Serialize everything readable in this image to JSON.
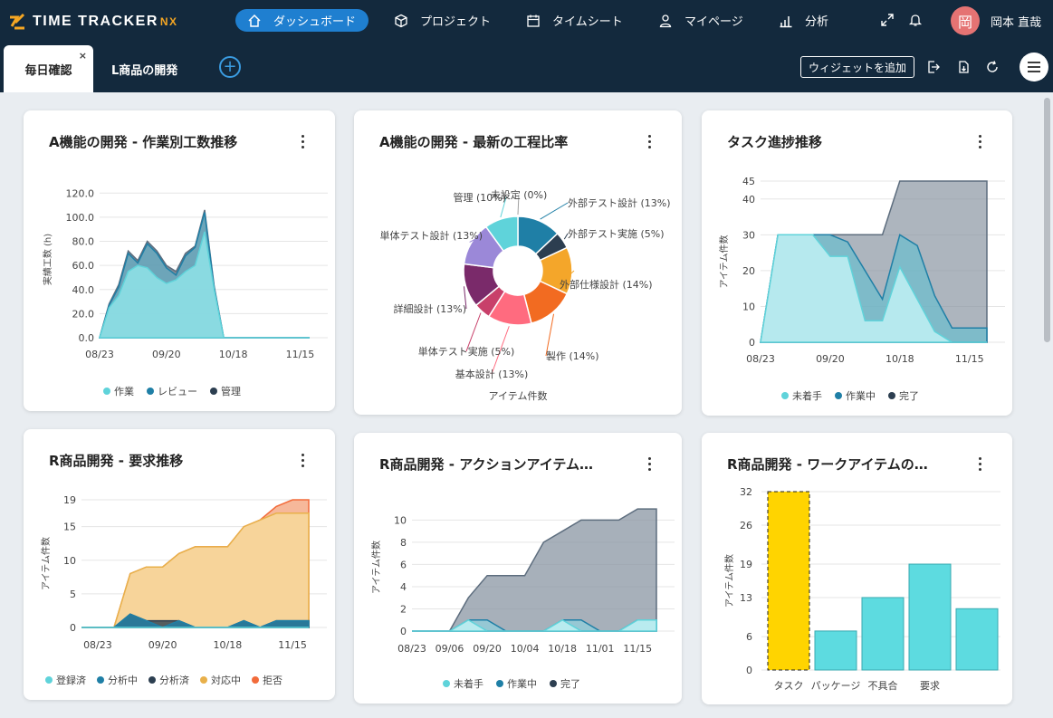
{
  "app": {
    "logo_text": "TIME TRACKER",
    "logo_suffix": "NX",
    "nav": [
      {
        "label": "ダッシュボード",
        "icon": "home-icon"
      },
      {
        "label": "プロジェクト",
        "icon": "cube-icon"
      },
      {
        "label": "タイムシート",
        "icon": "calendar-icon"
      },
      {
        "label": "マイページ",
        "icon": "user-icon"
      },
      {
        "label": "分析",
        "icon": "bar-chart-icon"
      }
    ],
    "user_initial": "岡",
    "user_name": "岡本 直哉"
  },
  "tabs": {
    "items": [
      {
        "label": "毎日確認"
      },
      {
        "label": "L商品の開発"
      }
    ],
    "close": "×",
    "add": "+",
    "add_widget_label": "ウィジェットを追加"
  },
  "colors": {
    "nav_bg": "#13293d",
    "active": "#1f7fd0",
    "cyan": "#5fd3da",
    "teal": "#1f7fa6",
    "navy": "#2c3e50",
    "gold": "#e8b04a",
    "orange": "#f26b3a"
  },
  "widgets": [
    {
      "title": "A機能の開発 - 作業別工数推移"
    },
    {
      "title": "A機能の開発 - 最新の工程比率"
    },
    {
      "title": "タスク進捗推移"
    },
    {
      "title": "R商品開発 - 要求推移"
    },
    {
      "title": "R商品開発 - アクションアイテム…"
    },
    {
      "title": "R商品開発 - ワークアイテムの…"
    }
  ],
  "chart_data": [
    {
      "type": "area",
      "x": [
        "08/23",
        "08/27",
        "08/31",
        "09/04",
        "09/08",
        "09/12",
        "09/16",
        "09/20",
        "09/24",
        "09/28",
        "10/02",
        "10/06",
        "10/10",
        "10/14",
        "10/18",
        "10/22",
        "10/26",
        "10/30",
        "11/03",
        "11/07",
        "11/11",
        "11/15",
        "11/19"
      ],
      "xticks": [
        "08/23",
        "09/20",
        "10/18",
        "11/15"
      ],
      "yticks": [
        "0.0",
        "20.0",
        "40.0",
        "60.0",
        "80.0",
        "100.0",
        "120.0"
      ],
      "ylim": [
        0,
        130
      ],
      "ylabel": "実績工数 (h)",
      "stacked": false,
      "series": [
        {
          "name": "作業",
          "values": [
            0,
            25,
            35,
            55,
            60,
            58,
            50,
            45,
            48,
            55,
            60,
            88,
            40,
            0,
            0,
            0,
            0,
            0,
            0,
            0,
            0,
            0,
            0
          ]
        },
        {
          "name": "レビュー",
          "values": [
            0,
            27,
            42,
            70,
            62,
            78,
            70,
            58,
            52,
            68,
            75,
            104,
            42,
            0,
            0,
            0,
            0,
            0,
            0,
            0,
            0,
            0,
            0
          ]
        },
        {
          "name": "管理",
          "values": [
            0,
            28,
            44,
            72,
            64,
            80,
            72,
            60,
            55,
            70,
            76,
            106,
            43,
            0,
            0,
            0,
            0,
            0,
            0,
            0,
            0,
            0,
            0
          ]
        }
      ]
    },
    {
      "type": "pie",
      "xlabel": "アイテム件数",
      "slices": [
        {
          "label": "外部テスト設計 (13%)",
          "value": 13
        },
        {
          "label": "外部テスト実施 (5%)",
          "value": 5
        },
        {
          "label": "外部仕様設計 (14%)",
          "value": 14
        },
        {
          "label": "製作 (14%)",
          "value": 14
        },
        {
          "label": "基本設計 (13%)",
          "value": 13
        },
        {
          "label": "単体テスト実施 (5%)",
          "value": 5
        },
        {
          "label": "詳細設計 (13%)",
          "value": 13
        },
        {
          "label": "単体テスト設計 (13%)",
          "value": 13
        },
        {
          "label": "管理 (10%)",
          "value": 10
        },
        {
          "label": "未設定 (0%)",
          "value": 0
        }
      ]
    },
    {
      "type": "area",
      "x": [
        "08/23",
        "08/30",
        "09/06",
        "09/13",
        "09/20",
        "09/27",
        "10/04",
        "10/11",
        "10/18",
        "10/25",
        "11/01",
        "11/08",
        "11/15",
        "11/22"
      ],
      "xticks": [
        "08/23",
        "09/20",
        "10/18",
        "11/15"
      ],
      "yticks": [
        "0",
        "10",
        "20",
        "30",
        "40",
        "45"
      ],
      "ylim": [
        0,
        45
      ],
      "ylabel": "アイテム件数",
      "series": [
        {
          "name": "未着手",
          "values": [
            0,
            30,
            30,
            30,
            24,
            24,
            6,
            6,
            21,
            12,
            3,
            0,
            0,
            0
          ]
        },
        {
          "name": "作業中",
          "values": [
            0,
            30,
            30,
            30,
            30,
            28,
            20,
            12,
            30,
            27,
            13,
            4,
            4,
            4
          ]
        },
        {
          "name": "完了",
          "values": [
            0,
            30,
            30,
            30,
            30,
            30,
            30,
            30,
            45,
            45,
            45,
            45,
            45,
            45
          ]
        }
      ]
    },
    {
      "type": "area",
      "x": [
        "08/16",
        "08/23",
        "08/30",
        "09/06",
        "09/13",
        "09/20",
        "09/27",
        "10/04",
        "10/11",
        "10/18",
        "10/25",
        "11/01",
        "11/08",
        "11/15",
        "11/22"
      ],
      "xticks": [
        "08/23",
        "09/20",
        "10/18",
        "11/15"
      ],
      "yticks": [
        "0",
        "5",
        "10",
        "15",
        "19"
      ],
      "ylim": [
        0,
        19
      ],
      "ylabel": "アイテム件数",
      "series": [
        {
          "name": "登録済",
          "values": [
            0,
            0,
            0,
            0,
            0,
            0,
            0,
            0,
            0,
            0,
            0,
            0,
            0,
            0,
            0
          ]
        },
        {
          "name": "分析中",
          "values": [
            0,
            0,
            0,
            2,
            1,
            0,
            1,
            0,
            0,
            0,
            1,
            0,
            1,
            1,
            1
          ]
        },
        {
          "name": "分析済",
          "values": [
            0,
            0,
            0,
            2,
            1,
            1,
            1,
            0,
            0,
            0,
            1,
            0,
            1,
            1,
            1
          ]
        },
        {
          "name": "対応中",
          "values": [
            0,
            0,
            0,
            8,
            9,
            9,
            11,
            12,
            12,
            12,
            15,
            16,
            17,
            17,
            17
          ]
        },
        {
          "name": "拒否",
          "values": [
            0,
            0,
            0,
            8,
            9,
            9,
            11,
            12,
            12,
            12,
            15,
            16,
            18,
            19,
            19
          ]
        }
      ]
    },
    {
      "type": "area",
      "x": [
        "08/23",
        "08/30",
        "09/06",
        "09/13",
        "09/20",
        "09/27",
        "10/04",
        "10/11",
        "10/18",
        "10/25",
        "11/01",
        "11/08",
        "11/15",
        "11/22"
      ],
      "xticks": [
        "08/23",
        "09/06",
        "09/20",
        "10/04",
        "10/18",
        "11/01",
        "11/15"
      ],
      "yticks": [
        "0",
        "2",
        "4",
        "6",
        "8",
        "10"
      ],
      "ylim": [
        0,
        11.5
      ],
      "ylabel": "アイテム件数",
      "series": [
        {
          "name": "未着手",
          "values": [
            0,
            0,
            0,
            1,
            0,
            0,
            0,
            0,
            1,
            0,
            0,
            0,
            1,
            1
          ]
        },
        {
          "name": "作業中",
          "values": [
            0,
            0,
            0,
            1,
            1,
            0,
            0,
            0,
            1,
            1,
            0,
            0,
            1,
            1
          ]
        },
        {
          "name": "完了",
          "values": [
            0,
            0,
            0,
            3,
            5,
            5,
            5,
            8,
            9,
            10,
            10,
            10,
            11,
            11
          ]
        }
      ]
    },
    {
      "type": "bar",
      "categories": [
        "タスク",
        "パッケージ",
        "不具合",
        "要求"
      ],
      "values": [
        32,
        7,
        13,
        19
      ],
      "extra_bar": 11,
      "yticks": [
        "0",
        "6",
        "13",
        "19",
        "26",
        "32"
      ],
      "ylim": [
        0,
        32
      ],
      "ylabel": "アイテム件数"
    }
  ]
}
